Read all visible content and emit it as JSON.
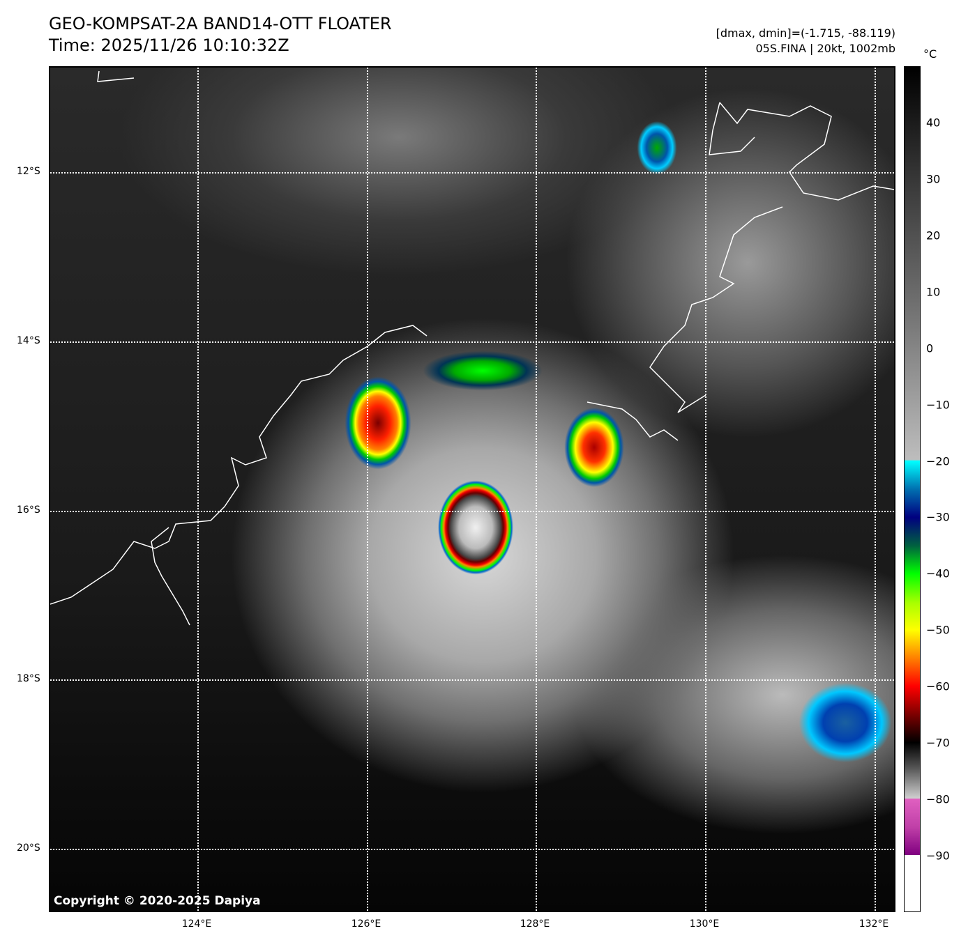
{
  "header": {
    "title": "GEO-KOMPSAT-2A BAND14-OTT FLOATER",
    "time": "Time: 2025/11/26 10:10:32Z",
    "stats": "[dmax, dmin]=(-1.715, -88.119)",
    "storm": "05S.FINA | 20kt, 1002mb"
  },
  "map": {
    "lat_labels": [
      "12°S",
      "14°S",
      "16°S",
      "18°S",
      "20°S"
    ],
    "lon_labels": [
      "124°E",
      "126°E",
      "128°E",
      "130°E",
      "132°E"
    ],
    "copyright": "Copyright © 2020-2025 Dapiya"
  },
  "colorbar": {
    "unit": "°C",
    "range": [
      -100,
      50
    ],
    "ticks": [
      "40",
      "30",
      "20",
      "10",
      "0",
      "−10",
      "−20",
      "−30",
      "−40",
      "−50",
      "−60",
      "−70",
      "−80",
      "−90"
    ],
    "colors": {
      "cyan": "#00ffff",
      "navy": "#000080",
      "green": "#00ff00",
      "yellow": "#ffff00",
      "red": "#ff0000",
      "pink": "#e060c0",
      "purple": "#800080"
    }
  }
}
